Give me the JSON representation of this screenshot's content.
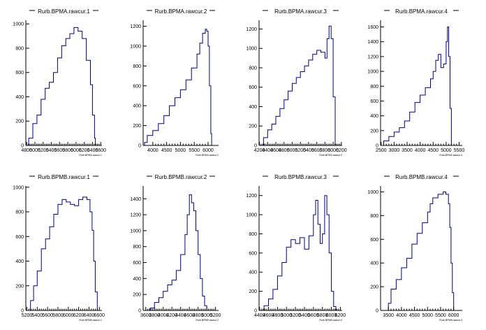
{
  "colors": {
    "line": "#00007f",
    "axis": "#000000",
    "background": "#ffffff"
  },
  "chart_data": [
    {
      "type": "line",
      "title": "Rurb.BPMA.rawcur.1",
      "xlabel": "Rurb.BPMA.rawcur.1",
      "xlim": [
        4780,
        6630
      ],
      "ylim": [
        0,
        1030
      ],
      "xticks": [
        4800,
        5000,
        5200,
        5400,
        5600,
        5800,
        6000,
        6200,
        6400,
        6600
      ],
      "xticklabels": [
        "4800",
        "5000",
        "5200",
        "5400",
        "5600",
        "5800",
        "6000",
        "6200",
        "6400",
        "6600"
      ],
      "yticks": [
        0,
        200,
        400,
        600,
        800,
        1000
      ],
      "yticklabels": [
        "0",
        "200",
        "400",
        "600",
        "800",
        "1000"
      ],
      "series": [
        {
          "x": [
            4780,
            4850,
            4950,
            5050,
            5150,
            5250,
            5350,
            5450,
            5550,
            5650,
            5750,
            5850,
            5950,
            6050,
            6150,
            6250,
            6350,
            6400,
            6450,
            6470
          ],
          "y": [
            0,
            60,
            180,
            250,
            380,
            470,
            520,
            600,
            720,
            820,
            880,
            920,
            970,
            940,
            880,
            700,
            500,
            250,
            60,
            0
          ]
        }
      ]
    },
    {
      "type": "line",
      "title": "Rurb.BPMA.rawcur.2",
      "xlabel": "Rurb.BPMA.rawcur.2",
      "xlim": [
        3650,
        6380
      ],
      "ylim": [
        0,
        1260
      ],
      "xticks": [
        4000,
        4500,
        5000,
        5500,
        6000
      ],
      "xticklabels": [
        "4000",
        "4500",
        "5000",
        "5500",
        "6000"
      ],
      "yticks": [
        0,
        200,
        400,
        600,
        800,
        1000,
        1200
      ],
      "yticklabels": [
        "0",
        "200",
        "400",
        "600",
        "800",
        "1000",
        "1200"
      ],
      "series": [
        {
          "x": [
            3650,
            3700,
            3800,
            4000,
            4200,
            4400,
            4600,
            4800,
            5000,
            5200,
            5400,
            5600,
            5700,
            5800,
            5900,
            5950,
            6000,
            6050,
            6100,
            6130
          ],
          "y": [
            0,
            30,
            100,
            150,
            220,
            300,
            400,
            480,
            560,
            660,
            780,
            920,
            1030,
            1130,
            1170,
            1150,
            1000,
            600,
            120,
            0
          ]
        }
      ]
    },
    {
      "type": "line",
      "title": "Rurb.BPMA.rawcur.3",
      "xlabel": "Rurb.BPMA.rawcur.3",
      "xlim": [
        4190,
        6220
      ],
      "ylim": [
        0,
        1290
      ],
      "xticks": [
        4200,
        4400,
        4600,
        4800,
        5000,
        5200,
        5400,
        5600,
        5800,
        6000,
        6200
      ],
      "xticklabels": [
        "4200",
        "4400",
        "4600",
        "4800",
        "5000",
        "5200",
        "5400",
        "5600",
        "5800",
        "6000",
        "6200"
      ],
      "yticks": [
        0,
        200,
        400,
        600,
        800,
        1000,
        1200
      ],
      "yticklabels": [
        "0",
        "200",
        "400",
        "600",
        "800",
        "1000",
        "1200"
      ],
      "series": [
        {
          "x": [
            4250,
            4300,
            4400,
            4500,
            4600,
            4700,
            4800,
            4900,
            5000,
            5100,
            5200,
            5300,
            5400,
            5500,
            5600,
            5700,
            5800,
            5850,
            5900,
            5950,
            6000,
            6050
          ],
          "y": [
            0,
            80,
            160,
            220,
            300,
            380,
            470,
            560,
            640,
            700,
            760,
            820,
            880,
            940,
            980,
            960,
            900,
            1100,
            1230,
            1100,
            500,
            0
          ]
        }
      ]
    },
    {
      "type": "line",
      "title": "Rurb.BPMA.rawcur.4",
      "xlabel": "Rurb.BPMA.rawcur.4",
      "xlim": [
        2480,
        5620
      ],
      "ylim": [
        0,
        1690
      ],
      "xticks": [
        2500,
        3000,
        3500,
        4000,
        4500,
        5000,
        5500
      ],
      "xticklabels": [
        "2500",
        "3000",
        "3500",
        "4000",
        "4500",
        "5000",
        "5500"
      ],
      "yticks": [
        0,
        200,
        400,
        600,
        800,
        1000,
        1200,
        1400,
        1600
      ],
      "yticklabels": [
        "0",
        "200",
        "400",
        "600",
        "800",
        "1000",
        "1200",
        "1400",
        "1600"
      ],
      "series": [
        {
          "x": [
            2550,
            2600,
            2800,
            3000,
            3200,
            3400,
            3600,
            3800,
            4000,
            4200,
            4400,
            4500,
            4600,
            4700,
            4800,
            4900,
            5000,
            5050,
            5100,
            5150,
            5200
          ],
          "y": [
            0,
            60,
            120,
            180,
            240,
            330,
            450,
            580,
            680,
            780,
            900,
            1000,
            1150,
            1230,
            1050,
            1100,
            1400,
            1600,
            1200,
            500,
            0
          ]
        }
      ]
    },
    {
      "type": "line",
      "title": "Rurb.BPMB.rawcur.1",
      "xlabel": "Rurb.BPMB.rawcur.1",
      "xlim": [
        5180,
        6650
      ],
      "ylim": [
        0,
        1010
      ],
      "xticks": [
        5200,
        5400,
        5600,
        5800,
        6000,
        6200,
        6400,
        6600
      ],
      "xticklabels": [
        "5200",
        "5400",
        "5600",
        "5800",
        "6000",
        "6200",
        "6400",
        "6600"
      ],
      "yticks": [
        0,
        200,
        400,
        600,
        800,
        1000
      ],
      "yticklabels": [
        "0",
        "200",
        "400",
        "600",
        "800",
        "1000"
      ],
      "series": [
        {
          "x": [
            5230,
            5270,
            5330,
            5400,
            5480,
            5560,
            5640,
            5720,
            5800,
            5880,
            5960,
            6040,
            6120,
            6200,
            6280,
            6360,
            6420,
            6460,
            6490,
            6520,
            6560
          ],
          "y": [
            0,
            80,
            200,
            320,
            500,
            580,
            680,
            780,
            860,
            900,
            880,
            860,
            850,
            900,
            920,
            900,
            800,
            650,
            400,
            150,
            0
          ]
        }
      ]
    },
    {
      "type": "line",
      "title": "Rurb.BPMB.rawcur.2",
      "xlabel": "Rurb.BPMB.rawcur.2",
      "xlim": [
        3540,
        5270
      ],
      "ylim": [
        0,
        1560
      ],
      "xticks": [
        3600,
        3800,
        4000,
        4200,
        4400,
        4600,
        4800,
        5000,
        5200
      ],
      "xticklabels": [
        "3600",
        "3800",
        "4000",
        "4200",
        "4400",
        "4600",
        "4800",
        "5000",
        "5200"
      ],
      "yticks": [
        0,
        200,
        400,
        600,
        800,
        1000,
        1200,
        1400
      ],
      "yticklabels": [
        "0",
        "200",
        "400",
        "600",
        "800",
        "1000",
        "1200",
        "1400"
      ],
      "series": [
        {
          "x": [
            3650,
            3700,
            3800,
            3900,
            4000,
            4100,
            4200,
            4300,
            4400,
            4500,
            4550,
            4600,
            4650,
            4700,
            4750,
            4800,
            4850,
            4900,
            4950,
            5000
          ],
          "y": [
            0,
            30,
            100,
            160,
            240,
            320,
            380,
            500,
            700,
            950,
            1200,
            1450,
            1350,
            1250,
            1000,
            700,
            400,
            180,
            60,
            0
          ]
        }
      ]
    },
    {
      "type": "line",
      "title": "Rurb.BPMB.rawcur.3",
      "xlabel": "Rurb.BPMB.rawcur.3",
      "xlim": [
        4390,
        6240
      ],
      "ylim": [
        0,
        1300
      ],
      "xticks": [
        4400,
        4600,
        4800,
        5000,
        5200,
        5400,
        5600,
        5800,
        6000,
        6200
      ],
      "xticklabels": [
        "4400",
        "4600",
        "4800",
        "5000",
        "5200",
        "5400",
        "5600",
        "5800",
        "6000",
        "6200"
      ],
      "yticks": [
        0,
        200,
        400,
        600,
        800,
        1000,
        1200
      ],
      "yticklabels": [
        "0",
        "200",
        "400",
        "600",
        "800",
        "1000",
        "1200"
      ],
      "series": [
        {
          "x": [
            4450,
            4500,
            4600,
            4700,
            4800,
            4900,
            5000,
            5100,
            5200,
            5300,
            5400,
            5500,
            5600,
            5650,
            5700,
            5750,
            5800,
            5850,
            5900,
            5950,
            6000,
            6050,
            6100
          ],
          "y": [
            0,
            50,
            120,
            220,
            360,
            500,
            660,
            740,
            700,
            760,
            640,
            780,
            1000,
            1150,
            900,
            700,
            800,
            1200,
            1000,
            600,
            200,
            40,
            0
          ]
        }
      ]
    },
    {
      "type": "line",
      "title": "Rurb.BPMB.rawcur.4",
      "xlabel": "Rurb.BPMB.rawcur.4",
      "xlim": [
        3200,
        6330
      ],
      "ylim": [
        0,
        1050
      ],
      "xticks": [
        3500,
        4000,
        4500,
        5000,
        5500,
        6000
      ],
      "xticklabels": [
        "3500",
        "4000",
        "4500",
        "5000",
        "5500",
        "6000"
      ],
      "yticks": [
        0,
        200,
        400,
        600,
        800,
        1000
      ],
      "yticklabels": [
        "0",
        "200",
        "400",
        "600",
        "800",
        "1000"
      ],
      "series": [
        {
          "x": [
            3450,
            3500,
            3600,
            3800,
            4000,
            4200,
            4400,
            4600,
            4800,
            5000,
            5100,
            5200,
            5400,
            5600,
            5700,
            5800,
            5850,
            5900,
            5950,
            6000
          ],
          "y": [
            0,
            60,
            180,
            260,
            360,
            440,
            560,
            650,
            740,
            830,
            900,
            950,
            980,
            1000,
            980,
            900,
            700,
            400,
            150,
            0
          ]
        }
      ]
    }
  ]
}
